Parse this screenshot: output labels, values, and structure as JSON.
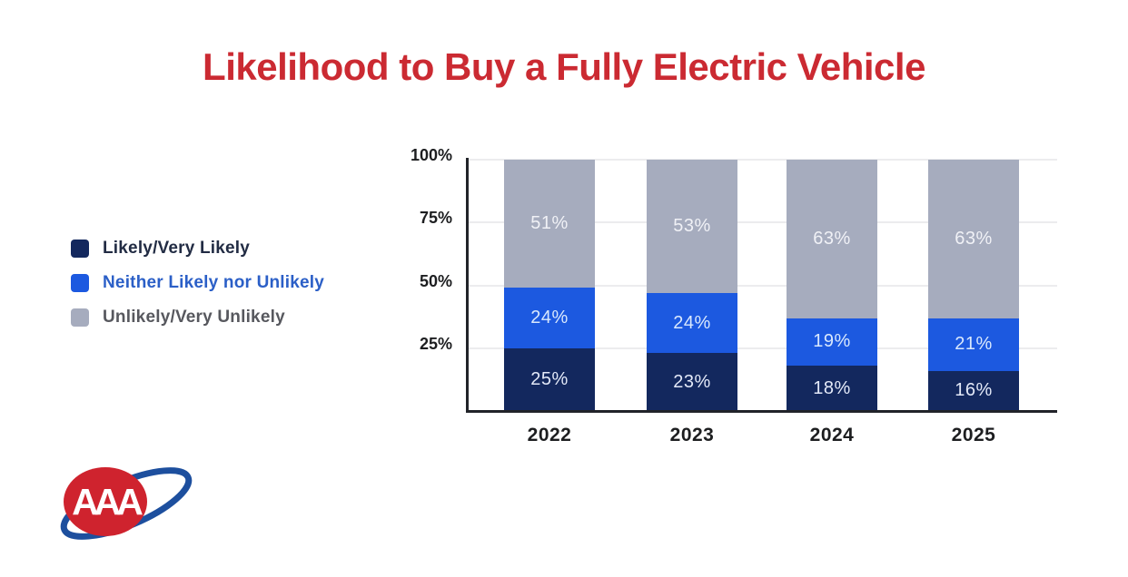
{
  "title": {
    "text": "Likelihood to Buy a Fully Electric Vehicle",
    "color": "#cb2a32"
  },
  "chart_data": {
    "type": "bar",
    "stacked": true,
    "title": "Likelihood to Buy a Fully Electric Vehicle",
    "categories": [
      "2022",
      "2023",
      "2024",
      "2025"
    ],
    "series": [
      {
        "name": "Likely/Very Likely",
        "color": "#13285e",
        "label_color": "#e3e9f8",
        "legend_text_color": "#222c44",
        "values": [
          25,
          23,
          18,
          16
        ]
      },
      {
        "name": "Neither Likely nor Unlikely",
        "color": "#1c59e0",
        "label_color": "#d9e8fd",
        "legend_text_color": "#2b5fc7",
        "values": [
          24,
          24,
          19,
          21
        ]
      },
      {
        "name": "Unlikely/Very Unlikely",
        "color": "#a6acbe",
        "label_color": "#f0f1f6",
        "legend_text_color": "#57585e",
        "values": [
          51,
          53,
          63,
          63
        ]
      }
    ],
    "unit": "%",
    "yticks": [
      {
        "value": 100,
        "label": "100%"
      },
      {
        "value": 75,
        "label": "75%"
      },
      {
        "value": 50,
        "label": "50%"
      },
      {
        "value": 25,
        "label": "25%"
      }
    ],
    "ylim": [
      0,
      100
    ],
    "grid": true,
    "legend_position": "left"
  },
  "logo": {
    "letters": "AAA",
    "oval_color": "#cf232e",
    "swoosh_color": "#1d4f9e"
  }
}
